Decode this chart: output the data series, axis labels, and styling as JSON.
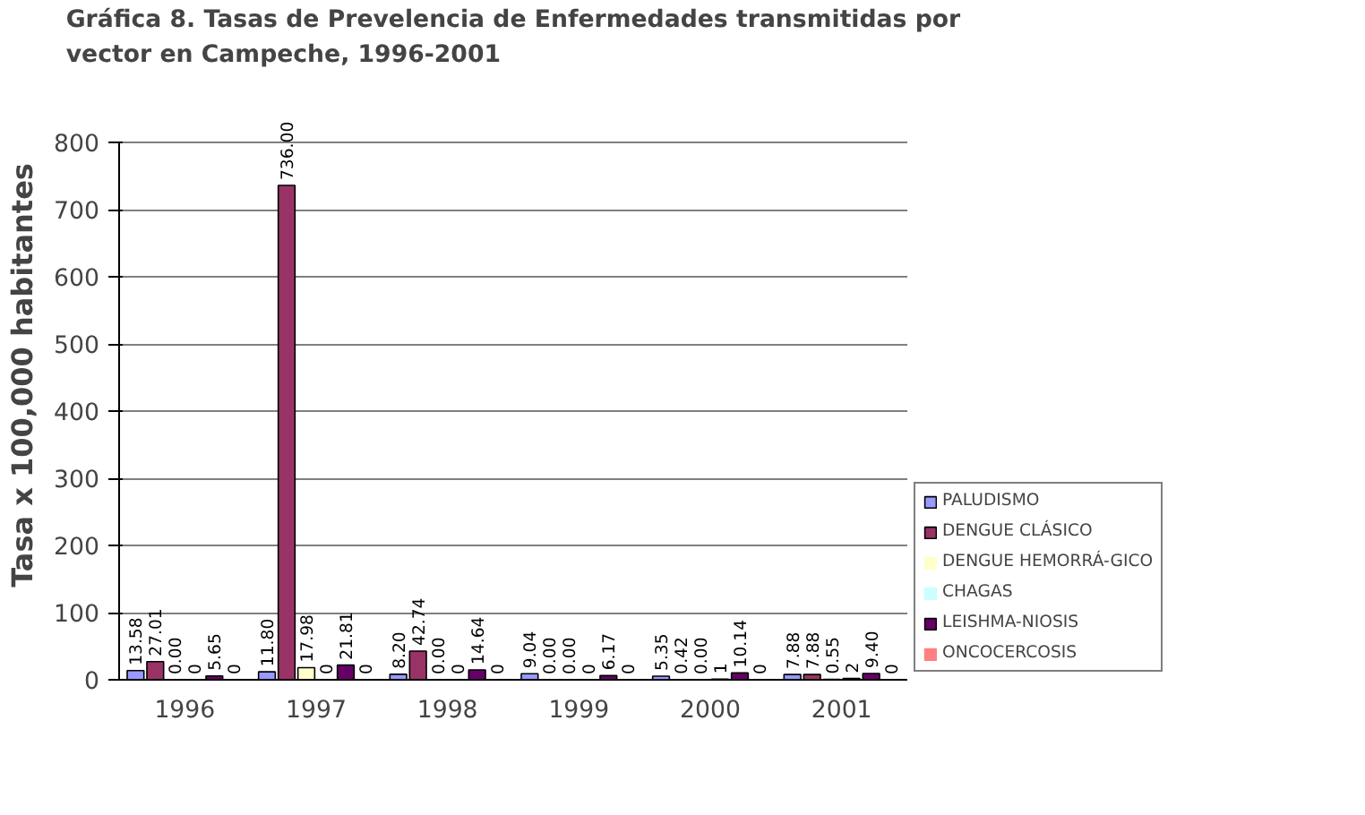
{
  "chart_data": {
    "type": "bar",
    "title": "Gráfica 8. Tasas de Prevelencia de Enfermedades transmitidas por vector en Campeche, 1996-2001",
    "ylabel": "Tasa x 100,000 habitantes",
    "categories": [
      "1996",
      "1997",
      "1998",
      "1999",
      "2000",
      "2001"
    ],
    "series": [
      {
        "name": "PALUDISMO",
        "color": "#9999ff",
        "values": [
          13.58,
          11.8,
          8.2,
          9.04,
          5.35,
          7.88
        ],
        "value_labels": [
          "13.58",
          "11.80",
          "8.20",
          "9.04",
          "5.35",
          "7.88"
        ]
      },
      {
        "name": "DENGUE CLÁSICO",
        "color": "#993366",
        "values": [
          27.01,
          736,
          42.74,
          0,
          0.42,
          7.88
        ],
        "value_labels": [
          "27.01",
          "736.00",
          "42.74",
          "0.00",
          "0.42",
          "7.88"
        ]
      },
      {
        "name": "DENGUE HEMORRÁ-GICO",
        "color": "#ffffcc",
        "values": [
          0,
          17.98,
          0,
          0,
          0,
          0.55
        ],
        "value_labels": [
          "0.00",
          "17.98",
          "0.00",
          "0.00",
          "0.00",
          "0.55"
        ]
      },
      {
        "name": "CHAGAS",
        "color": "#ccffff",
        "values": [
          0,
          0,
          0,
          0,
          1,
          2
        ],
        "value_labels": [
          "0",
          "0",
          "0",
          "0",
          "1",
          "2"
        ]
      },
      {
        "name": "LEISHMA-NIOSIS",
        "color": "#660066",
        "values": [
          5.65,
          21.81,
          14.64,
          6.17,
          10.14,
          9.4
        ],
        "value_labels": [
          "5.65",
          "21.81",
          "14.64",
          "6.17",
          "10.14",
          "9.40"
        ]
      },
      {
        "name": "ONCOCERCOSIS",
        "color": "#ff8080",
        "values": [
          0,
          0,
          0,
          0,
          0,
          0
        ],
        "value_labels": [
          "0",
          "0",
          "0",
          "0",
          "0",
          "0"
        ]
      }
    ],
    "ylim": [
      0,
      800
    ],
    "yticks": [
      0,
      100,
      200,
      300,
      400,
      500,
      600,
      700,
      800
    ],
    "grid": "y",
    "legend": "right"
  }
}
